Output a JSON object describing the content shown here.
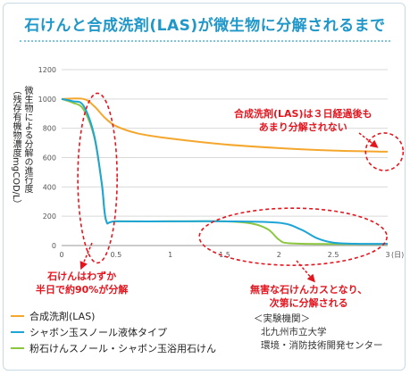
{
  "title": "石けんと合成洗剤(LAS)が微生物に分解されるまで",
  "ylabel_line1": "微生物による分解の進行度",
  "ylabel_line2": "（残存有機物濃度mgCOD/L）",
  "chart_data": {
    "type": "line",
    "xlabel": "",
    "x_unit": "(日)",
    "ylabel": "微生物による分解の進行度（残存有機物濃度mgCOD/L）",
    "xlim": [
      0,
      3
    ],
    "ylim": [
      0,
      1200
    ],
    "x_ticks": [
      "0",
      "0.5",
      "1",
      "1.5",
      "2",
      "2.5",
      "3"
    ],
    "y_ticks": [
      "0",
      "200",
      "400",
      "600",
      "800",
      "1000",
      "1200"
    ],
    "grid": "horizontal",
    "legend_position": "bottom-left",
    "series": [
      {
        "name": "合成洗剤(LAS)",
        "color": "#f4a72c",
        "points": [
          [
            0,
            1000
          ],
          [
            0.2,
            1000
          ],
          [
            0.3,
            950
          ],
          [
            0.4,
            870
          ],
          [
            0.5,
            815
          ],
          [
            0.7,
            765
          ],
          [
            1.0,
            730
          ],
          [
            1.5,
            690
          ],
          [
            2.0,
            665
          ],
          [
            2.5,
            648
          ],
          [
            3.0,
            640
          ]
        ]
      },
      {
        "name": "シャボン玉スノール液体タイプ",
        "color": "#1ea5d6",
        "points": [
          [
            0,
            1000
          ],
          [
            0.1,
            985
          ],
          [
            0.2,
            955
          ],
          [
            0.3,
            750
          ],
          [
            0.37,
            420
          ],
          [
            0.41,
            170
          ],
          [
            0.5,
            165
          ],
          [
            1.0,
            165
          ],
          [
            1.5,
            165
          ],
          [
            2.0,
            155
          ],
          [
            2.2,
            110
          ],
          [
            2.35,
            50
          ],
          [
            2.5,
            20
          ],
          [
            2.7,
            12
          ],
          [
            3.0,
            12
          ]
        ]
      },
      {
        "name": "粉石けんスノール・シャボン玉浴用石けん",
        "color": "#8cc63f",
        "points": [
          [
            0,
            1000
          ],
          [
            0.1,
            975
          ],
          [
            0.2,
            930
          ],
          [
            0.3,
            740
          ],
          [
            0.37,
            420
          ],
          [
            0.41,
            170
          ],
          [
            0.5,
            165
          ],
          [
            1.0,
            165
          ],
          [
            1.5,
            165
          ],
          [
            1.75,
            150
          ],
          [
            1.9,
            110
          ],
          [
            2.0,
            40
          ],
          [
            2.1,
            15
          ],
          [
            2.5,
            10
          ],
          [
            3.0,
            10
          ]
        ]
      }
    ],
    "annotations": [
      "合成洗剤(LAS)は３日経過後も",
      "あまり分解されない",
      "石けんはわずか",
      "半日で約90%が分解",
      "無害な石けんカスとなり、",
      "次第に分解される"
    ]
  },
  "credit": {
    "heading": "＜実験機関＞",
    "line1": "北九州市立大学",
    "line2": "環境・消防技術開発センター"
  },
  "colors": {
    "title": "#1f97c9",
    "annotation": "#e5151e",
    "grid": "#d9d9d9"
  }
}
